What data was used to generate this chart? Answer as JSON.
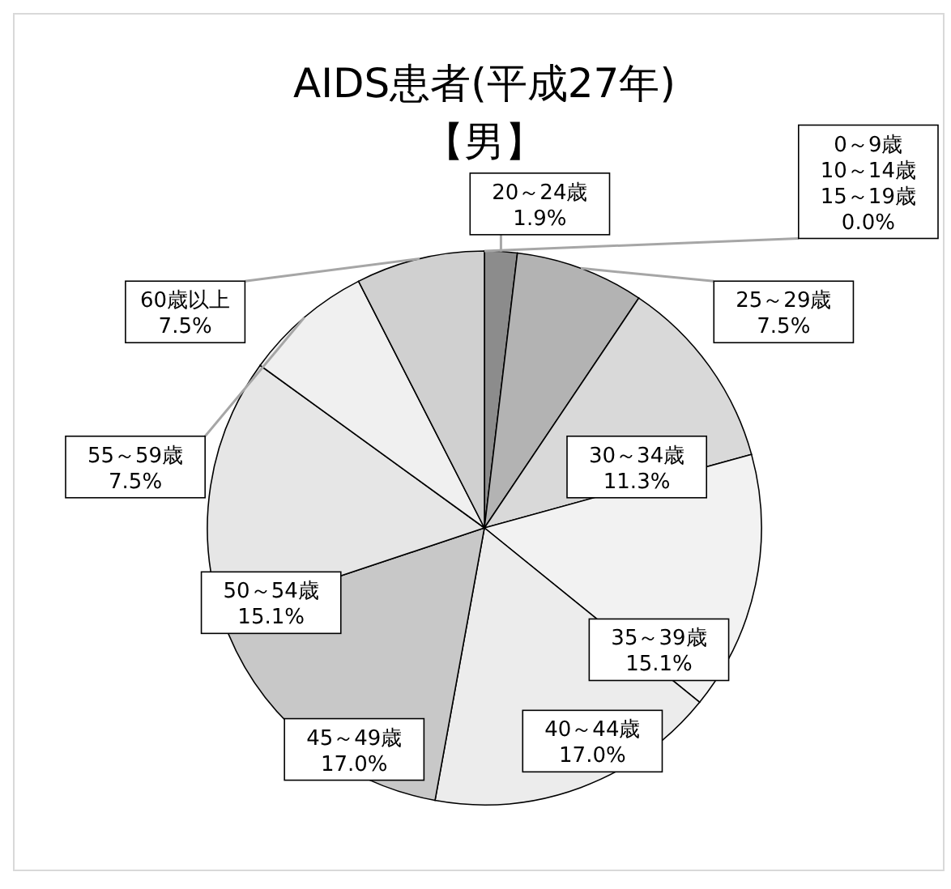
{
  "chart_data": {
    "type": "pie",
    "title": "AIDS患者(平成27年)",
    "subtitle": "【男】",
    "categories": [
      "0～9歳\n10～14歳\n15～19歳",
      "20～24歳",
      "25～29歳",
      "30～34歳",
      "35～39歳",
      "40～44歳",
      "45～49歳",
      "50～54歳",
      "55～59歳",
      "60歳以上"
    ],
    "values": [
      0.0,
      1.9,
      7.5,
      11.3,
      15.1,
      17.0,
      17.0,
      15.1,
      7.5,
      7.5
    ],
    "colors": [
      "#7f7f7f",
      "#8c8c8c",
      "#b3b3b3",
      "#d9d9d9",
      "#f2f2f2",
      "#ececec",
      "#c8c8c8",
      "#e6e6e6",
      "#f0f0f0",
      "#d0d0d0"
    ],
    "value_labels": [
      "0.0%",
      "1.9%",
      "7.5%",
      "11.3%",
      "15.1%",
      "17.0%",
      "17.0%",
      "15.1%",
      "7.5%",
      "7.5%"
    ]
  }
}
